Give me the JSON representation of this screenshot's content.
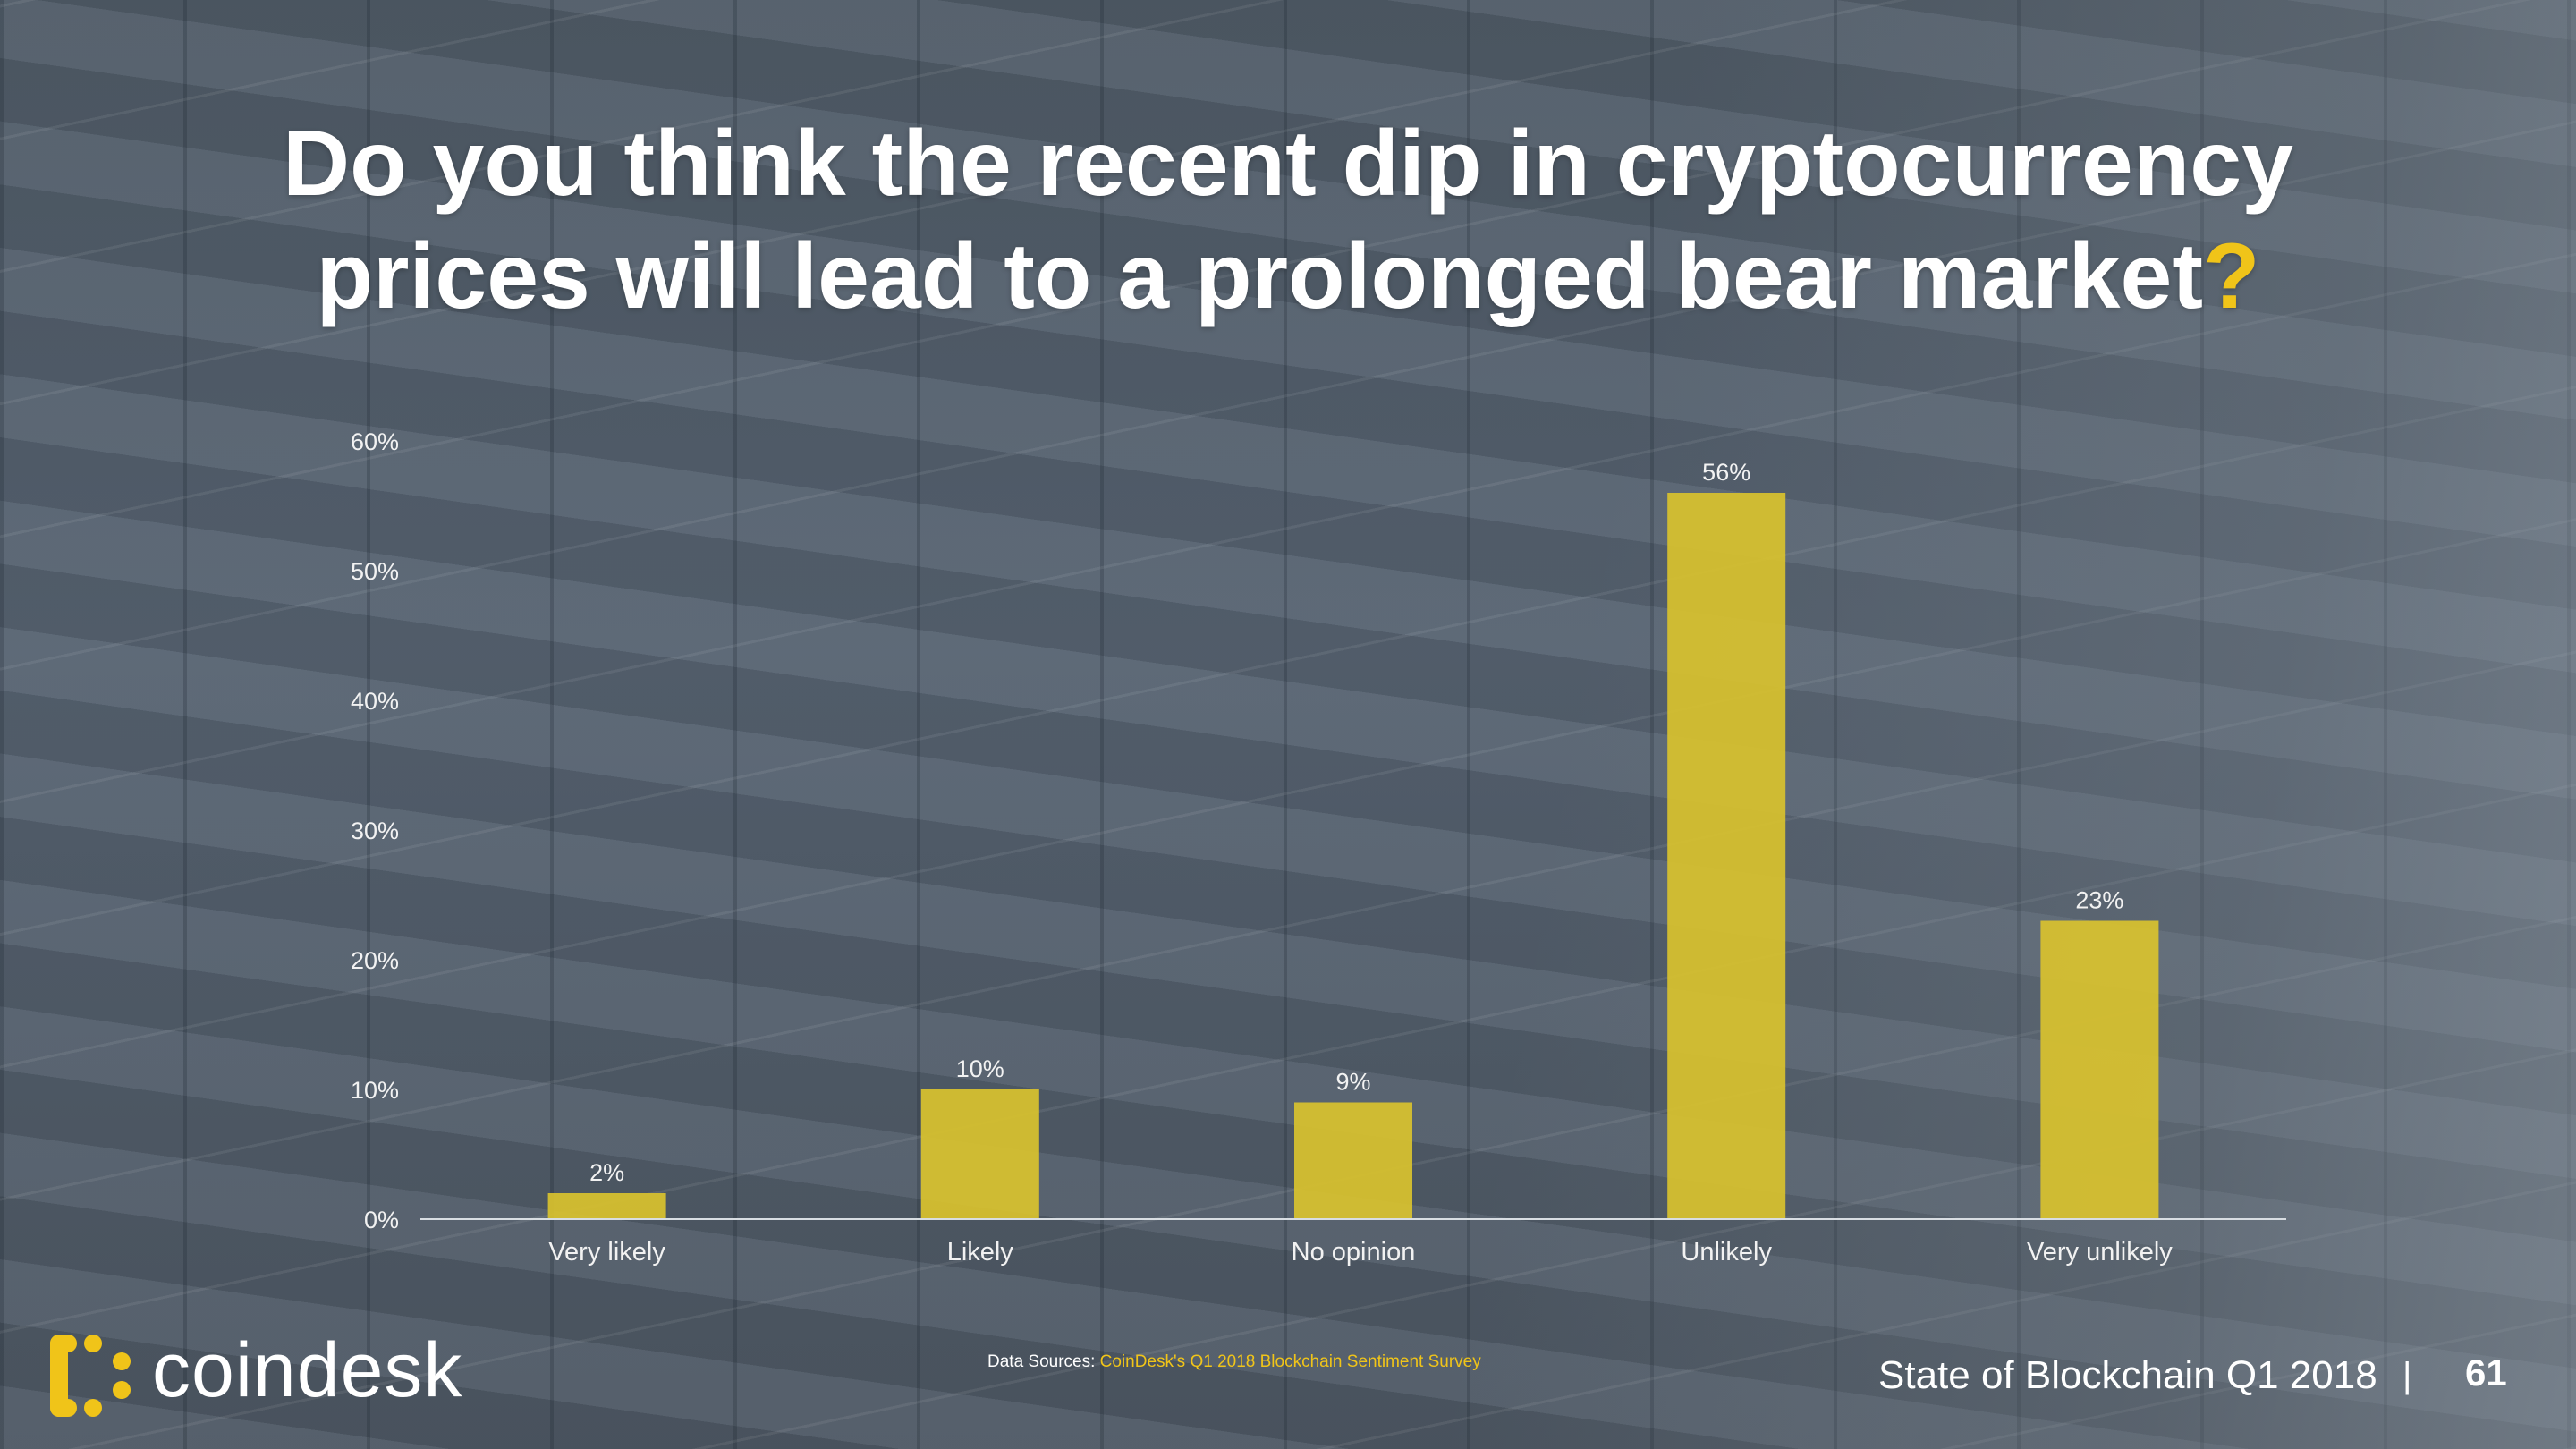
{
  "slide": {
    "title_line1": "Do you think the recent dip in cryptocurrency",
    "title_line2": "prices will lead to a prolonged bear market",
    "title_qmark": "?",
    "accent_color": "#f0c419"
  },
  "chart_data": {
    "type": "bar",
    "categories": [
      "Very likely",
      "Likely",
      "No opinion",
      "Unlikely",
      "Very unlikely"
    ],
    "values": [
      2,
      10,
      9,
      56,
      23
    ],
    "value_labels": [
      "2%",
      "10%",
      "9%",
      "56%",
      "23%"
    ],
    "ylim": [
      0,
      60
    ],
    "yticks": [
      "0%",
      "10%",
      "20%",
      "30%",
      "40%",
      "50%",
      "60%"
    ],
    "bar_color": "#d9c22e",
    "grid": false,
    "title": "",
    "xlabel": "",
    "ylabel": ""
  },
  "footer": {
    "logo_text": "coindesk",
    "source_prefix": "Data Sources: ",
    "source_link": "CoinDesk's Q1 2018 Blockchain Sentiment Survey",
    "report_title": "State of Blockchain Q1 2018",
    "separator": "|",
    "page_number": "61"
  },
  "icons": {
    "logo": "coindesk-logo-icon"
  }
}
